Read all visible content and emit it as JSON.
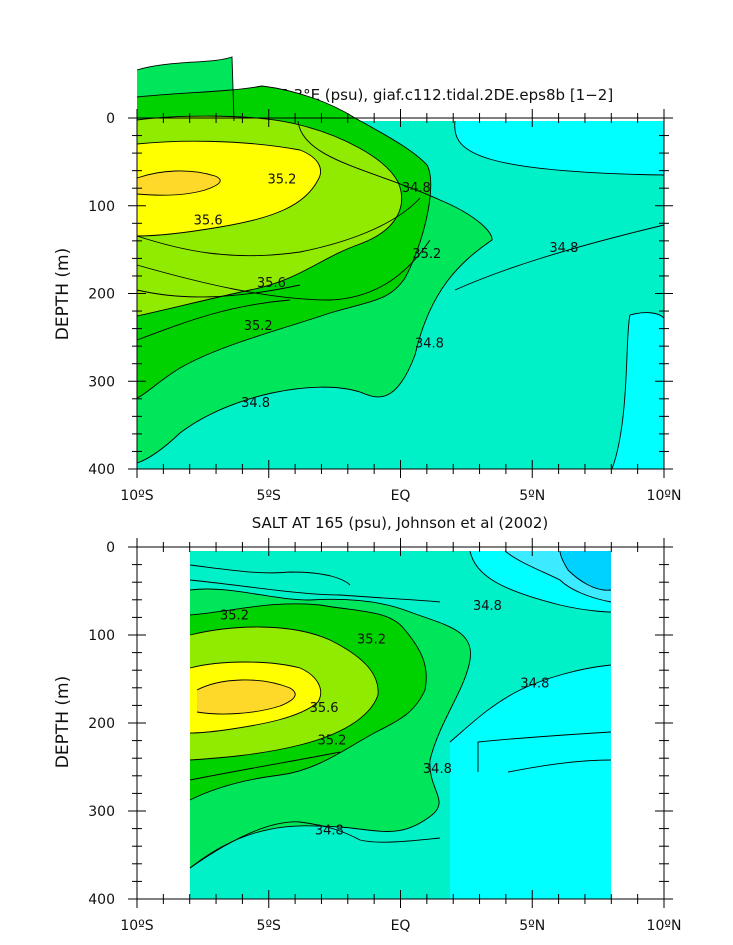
{
  "chart_data": [
    {
      "type": "contour",
      "title": "SALT AT 165.3°E (psu), giaf.c112.tidal.2DE.eps8b [1−2]",
      "ylabel": "DEPTH (m)",
      "xlabel": "",
      "x_ticks": [
        "10ºS",
        "5ºS",
        "EQ",
        "5ºN",
        "10ºN"
      ],
      "x_tick_values": [
        -10,
        -5,
        0,
        5,
        10
      ],
      "y_ticks": [
        0,
        100,
        200,
        300,
        400
      ],
      "xlim": [
        -10,
        10
      ],
      "ylim": [
        400,
        0
      ],
      "x_data_range": [
        -10,
        10
      ],
      "y_data_range": [
        3,
        400
      ],
      "contour_interval": 0.1,
      "fill_levels": [
        {
          "range": "<34.7",
          "color": "#00ffff"
        },
        {
          "range": "34.7-34.9",
          "color": "#00f0c8"
        },
        {
          "range": "34.9-35.1",
          "color": "#00e65a"
        },
        {
          "range": "35.1-35.3",
          "color": "#00d200"
        },
        {
          "range": "35.3-35.5",
          "color": "#90eb00"
        },
        {
          "range": "35.5-35.7",
          "color": "#ffff00"
        },
        {
          "range": ">35.7",
          "color": "#ffd92a"
        }
      ],
      "contour_labels": [
        {
          "text": "35.2",
          "x": -4.5,
          "y": 70
        },
        {
          "text": "34.8",
          "x": 0.6,
          "y": 80
        },
        {
          "text": "35.6",
          "x": -7.3,
          "y": 117
        },
        {
          "text": "35.2",
          "x": 1.0,
          "y": 155
        },
        {
          "text": "34.8",
          "x": 6.2,
          "y": 148
        },
        {
          "text": "35.6",
          "x": -4.9,
          "y": 188
        },
        {
          "text": "35.2",
          "x": -5.4,
          "y": 237
        },
        {
          "text": "34.8",
          "x": 1.1,
          "y": 257
        },
        {
          "text": "34.8",
          "x": -5.5,
          "y": 325
        }
      ]
    },
    {
      "type": "contour",
      "title": "SALT AT 165 (psu), Johnson et al (2002)",
      "ylabel": "DEPTH (m)",
      "xlabel": "",
      "x_ticks": [
        "10ºS",
        "5ºS",
        "EQ",
        "5ºN",
        "10ºN"
      ],
      "x_tick_values": [
        -10,
        -5,
        0,
        5,
        10
      ],
      "y_ticks": [
        0,
        100,
        200,
        300,
        400
      ],
      "xlim": [
        -10,
        10
      ],
      "ylim": [
        400,
        0
      ],
      "x_data_range": [
        -8,
        8
      ],
      "y_data_range": [
        5,
        400
      ],
      "contour_interval": 0.1,
      "fill_levels": [
        {
          "range": "<34.5",
          "color": "#00d2ff"
        },
        {
          "range": "34.5-34.7",
          "color": "#3cebff"
        },
        {
          "range": "34.7-34.9",
          "color": "#00ffff"
        },
        {
          "range": "34.9-35.1",
          "color": "#00f0c8"
        },
        {
          "range": "35.1-35.3",
          "color": "#00e65a"
        },
        {
          "range": "35.3-35.5",
          "color": "#00d200"
        },
        {
          "range": "35.5-35.7",
          "color": "#90eb00"
        },
        {
          "range": ">35.7",
          "color": "#ffff00"
        }
      ],
      "contour_labels": [
        {
          "text": "35.2",
          "x": -6.3,
          "y": 78
        },
        {
          "text": "35.2",
          "x": -1.1,
          "y": 105
        },
        {
          "text": "34.8",
          "x": 3.3,
          "y": 67
        },
        {
          "text": "34.8",
          "x": 5.1,
          "y": 155
        },
        {
          "text": "35.6",
          "x": -2.9,
          "y": 183
        },
        {
          "text": "35.2",
          "x": -2.6,
          "y": 220
        },
        {
          "text": "34.8",
          "x": 1.4,
          "y": 252
        },
        {
          "text": "34.8",
          "x": -2.7,
          "y": 322
        }
      ]
    }
  ]
}
